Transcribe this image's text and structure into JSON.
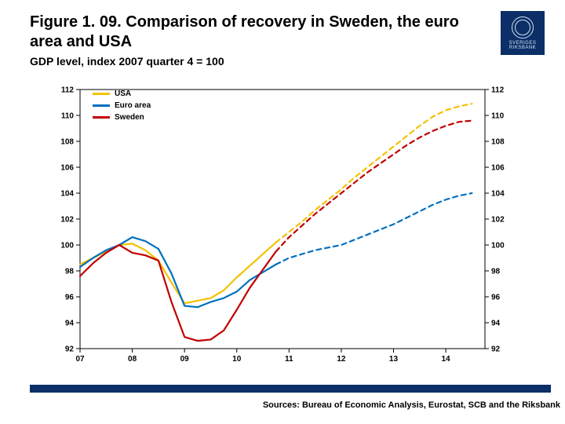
{
  "title": "Figure 1. 09. Comparison of recovery in Sweden, the euro area and USA",
  "subtitle": "GDP level, index 2007 quarter 4 = 100",
  "logo_text": "SVERIGES\nRIKSBANK",
  "sources": "Sources: Bureau of Economic Analysis, Eurostat, SCB and the Riksbank",
  "chart": {
    "type": "line",
    "background_color": "#ffffff",
    "plot_border_color": "#000000",
    "plot_border_width": 1,
    "tick_color": "#000000",
    "tick_label_fontsize": 10,
    "x_ticks": [
      "07",
      "08",
      "09",
      "10",
      "11",
      "12",
      "13",
      "14"
    ],
    "y_ticks": [
      92,
      94,
      96,
      98,
      100,
      102,
      104,
      106,
      108,
      110,
      112
    ],
    "ylim": [
      92,
      112
    ],
    "xlim": [
      2007,
      2014.75
    ],
    "line_width": 2.2,
    "dash_start_index": 15,
    "series": [
      {
        "name": "USA",
        "color": "#f3c200",
        "x": [
          2007.0,
          2007.25,
          2007.5,
          2007.75,
          2008.0,
          2008.25,
          2008.5,
          2008.75,
          2009.0,
          2009.25,
          2009.5,
          2009.75,
          2010.0,
          2010.25,
          2010.5,
          2010.75,
          2011.0,
          2011.25,
          2011.5,
          2011.75,
          2012.0,
          2012.25,
          2012.5,
          2012.75,
          2013.0,
          2013.25,
          2013.5,
          2013.75,
          2014.0,
          2014.25,
          2014.5
        ],
        "y": [
          98.5,
          99.0,
          99.5,
          100.0,
          100.1,
          99.6,
          98.8,
          97.1,
          95.5,
          95.7,
          95.9,
          96.5,
          97.5,
          98.4,
          99.3,
          100.2,
          101.0,
          101.8,
          102.7,
          103.5,
          104.3,
          105.2,
          106.0,
          106.8,
          107.6,
          108.4,
          109.2,
          109.9,
          110.4,
          110.7,
          110.9
        ]
      },
      {
        "name": "Euro area",
        "color": "#0070c0",
        "x": [
          2007.0,
          2007.25,
          2007.5,
          2007.75,
          2008.0,
          2008.25,
          2008.5,
          2008.75,
          2009.0,
          2009.25,
          2009.5,
          2009.75,
          2010.0,
          2010.25,
          2010.5,
          2010.75,
          2011.0,
          2011.25,
          2011.5,
          2011.75,
          2012.0,
          2012.25,
          2012.5,
          2012.75,
          2013.0,
          2013.25,
          2013.5,
          2013.75,
          2014.0,
          2014.25,
          2014.5
        ],
        "y": [
          98.3,
          99.0,
          99.6,
          100.0,
          100.6,
          100.3,
          99.7,
          97.8,
          95.3,
          95.2,
          95.6,
          95.9,
          96.4,
          97.3,
          97.9,
          98.5,
          99.0,
          99.3,
          99.6,
          99.8,
          100.0,
          100.4,
          100.8,
          101.2,
          101.6,
          102.1,
          102.6,
          103.1,
          103.5,
          103.8,
          104.0
        ]
      },
      {
        "name": "Sweden",
        "color": "#c00000",
        "x": [
          2007.0,
          2007.25,
          2007.5,
          2007.75,
          2008.0,
          2008.25,
          2008.5,
          2008.75,
          2009.0,
          2009.25,
          2009.5,
          2009.75,
          2010.0,
          2010.25,
          2010.5,
          2010.75,
          2011.0,
          2011.25,
          2011.5,
          2011.75,
          2012.0,
          2012.25,
          2012.5,
          2012.75,
          2013.0,
          2013.25,
          2013.5,
          2013.75,
          2014.0,
          2014.25,
          2014.5
        ],
        "y": [
          97.6,
          98.6,
          99.4,
          100.0,
          99.4,
          99.2,
          98.8,
          95.6,
          92.9,
          92.6,
          92.7,
          93.4,
          95.0,
          96.7,
          98.1,
          99.5,
          100.6,
          101.5,
          102.4,
          103.2,
          104.0,
          104.8,
          105.6,
          106.3,
          107.0,
          107.7,
          108.3,
          108.8,
          109.2,
          109.5,
          109.6
        ]
      }
    ],
    "legend_fontsize": 10,
    "legend_fontweight": 700
  },
  "colors": {
    "brand_navy": "#0b2f66"
  }
}
